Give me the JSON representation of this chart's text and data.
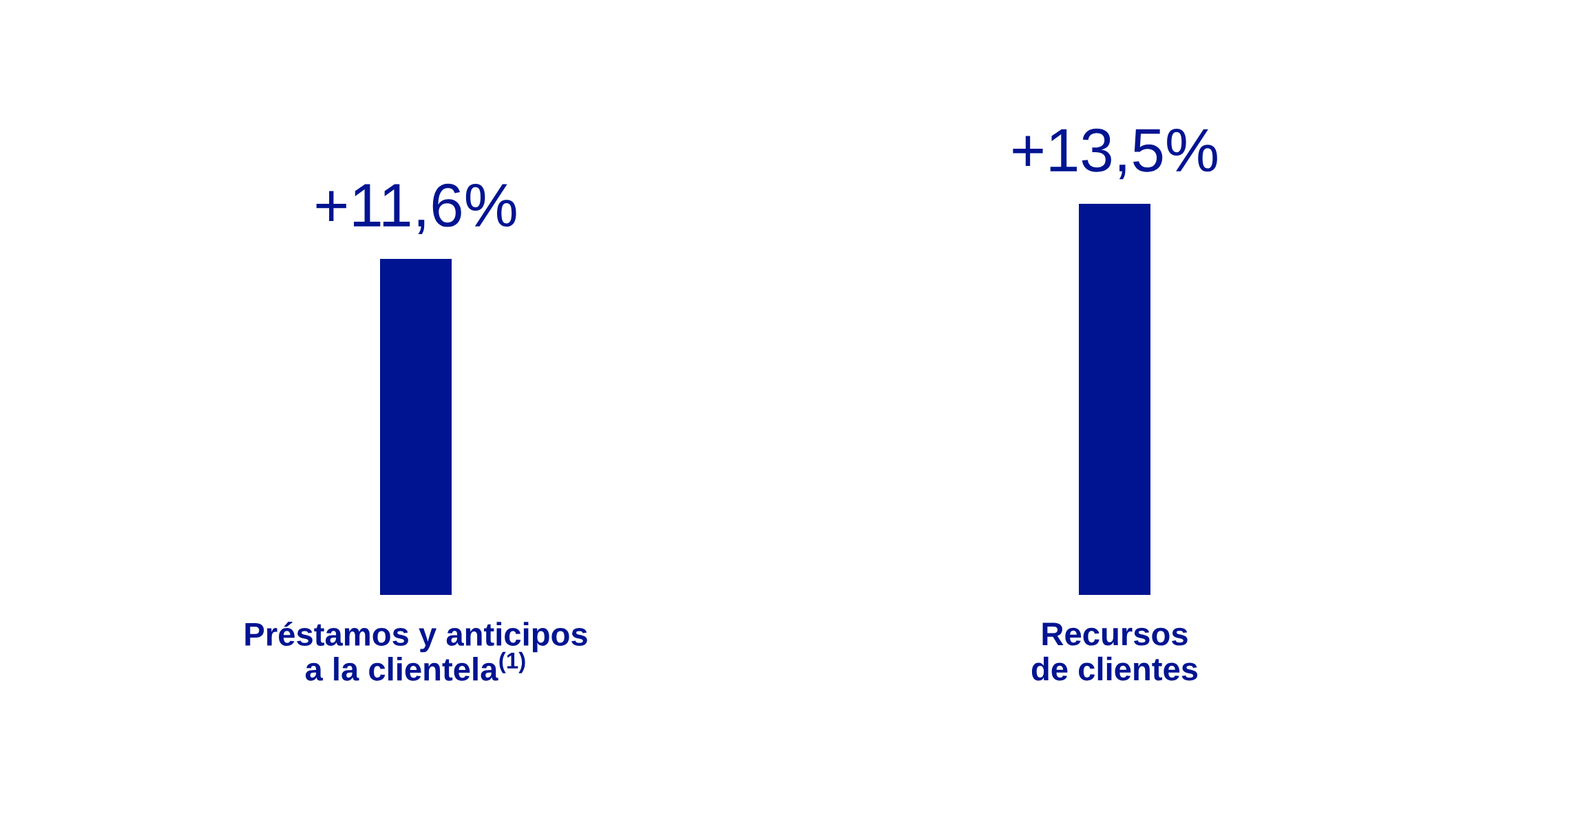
{
  "chart_data": {
    "type": "bar",
    "categories": [
      "Préstamos y anticipos\na la clientela$^{(1)}$",
      "Recursos\nde clientes"
    ],
    "values": [
      11.6,
      13.5
    ],
    "color": "#001491",
    "value_labels": [
      "+11,6%",
      "+13,5%"
    ]
  }
}
